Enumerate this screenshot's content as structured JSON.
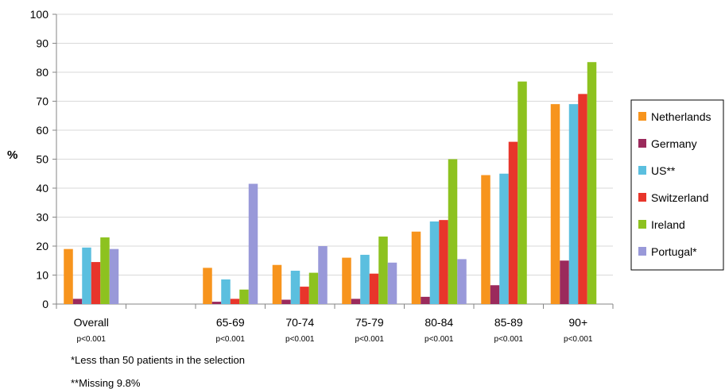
{
  "chart_data": {
    "type": "bar",
    "ylabel": "%",
    "xlabel": "",
    "ylim": [
      0,
      100
    ],
    "yticks": [
      0,
      10,
      20,
      30,
      40,
      50,
      60,
      70,
      80,
      90,
      100
    ],
    "categories": [
      "Overall",
      "",
      "65-69",
      "70-74",
      "75-79",
      "80-84",
      "85-89",
      "90+"
    ],
    "pvalues": [
      "p<0.001",
      "",
      "p<0.001",
      "p<0.001",
      "p<0.001",
      "p<0.001",
      "p<0.001",
      "p<0.001"
    ],
    "series": [
      {
        "name": "Netherlands",
        "color": "#f7941d",
        "values": [
          19,
          null,
          12.5,
          13.5,
          16,
          25,
          44.5,
          69
        ]
      },
      {
        "name": "Germany",
        "color": "#9b2a5c",
        "values": [
          1.8,
          null,
          0.8,
          1.5,
          1.8,
          2.5,
          6.5,
          15
        ]
      },
      {
        "name": "US**",
        "color": "#5bbfdf",
        "values": [
          19.5,
          null,
          8.5,
          11.5,
          17,
          28.5,
          45,
          69
        ]
      },
      {
        "name": "Switzerland",
        "color": "#e8352b",
        "values": [
          14.5,
          null,
          1.8,
          6,
          10.5,
          29,
          56,
          72.5
        ]
      },
      {
        "name": "Ireland",
        "color": "#8dc21f",
        "values": [
          23,
          null,
          5,
          10.8,
          23.3,
          50,
          76.8,
          83.5
        ]
      },
      {
        "name": "Portugal*",
        "color": "#9999d9",
        "values": [
          19,
          null,
          41.5,
          20,
          14.3,
          15.5,
          null,
          null
        ]
      }
    ],
    "legend_position": "right"
  },
  "footnotes": {
    "note1": "*Less than 50 patients in the selection",
    "note2": "**Missing 9.8%"
  }
}
